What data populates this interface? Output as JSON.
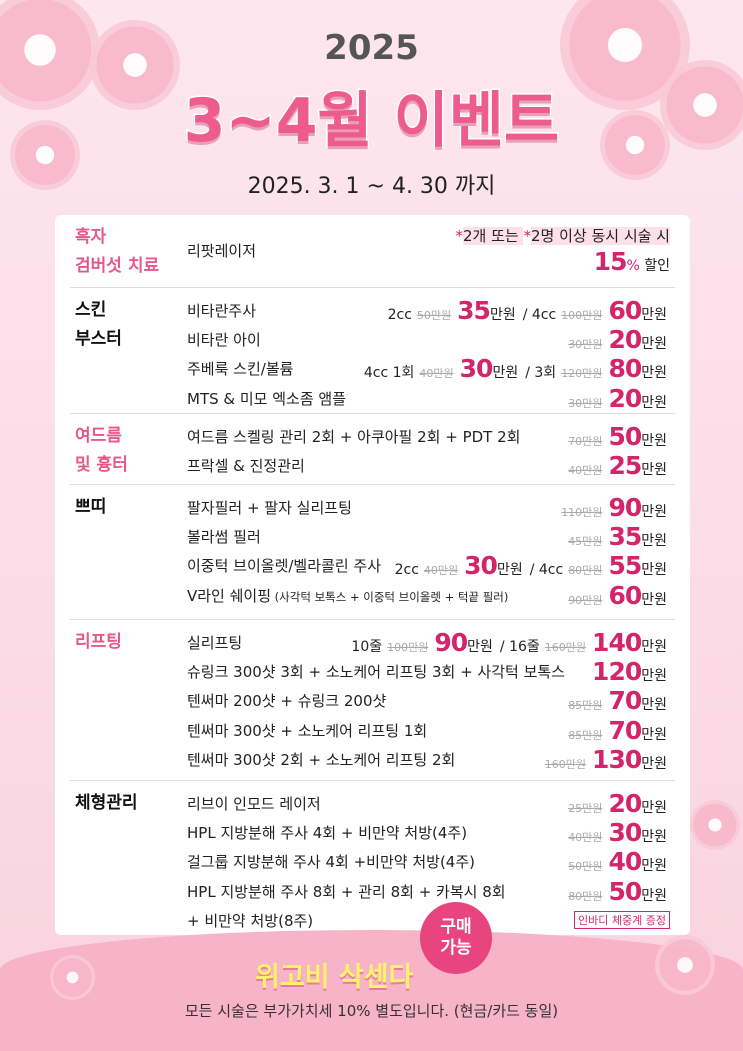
{
  "header": {
    "year": "2025",
    "title": "3~4월 이벤트",
    "period": "2025. 3. 1 ~ 4. 30 까지"
  },
  "colors": {
    "accent": "#d4256c",
    "category_pink": "#e8578a",
    "background": "#fbdbe6"
  },
  "notice": {
    "star1": "*",
    "part1": "2개 또는 ",
    "star2": "*",
    "part2": "2명 이상 동시 시술 시",
    "percent": "15",
    "percent_sign": "%",
    "discount": " 할인"
  },
  "sections": [
    {
      "category": "흑자\n검버섯 치료",
      "color": "pink",
      "rows": [
        {
          "item": "리팟레이저",
          "options": []
        }
      ]
    },
    {
      "category": "스킨\n부스터",
      "color": "black",
      "rows": [
        {
          "item": "비타란주사",
          "options": [
            {
              "prefix": "2cc",
              "orig": "50만원",
              "price": "35",
              "unit": "만원"
            },
            {
              "prefix": "/  4cc",
              "orig": "100만원",
              "price": "60",
              "unit": "만원"
            }
          ]
        },
        {
          "item": "비타란 아이",
          "options": [
            {
              "orig": "30만원",
              "price": "20",
              "unit": "만원"
            }
          ]
        },
        {
          "item": "주베룩 스킨/볼륨",
          "options": [
            {
              "prefix": "4cc 1회",
              "orig": "40만원",
              "price": "30",
              "unit": "만원"
            },
            {
              "prefix": "/ 3회",
              "orig": "120만원",
              "price": "80",
              "unit": "만원"
            }
          ]
        },
        {
          "item": "MTS & 미모 엑소좀 앰플",
          "options": [
            {
              "orig": "30만원",
              "price": "20",
              "unit": "만원"
            }
          ]
        }
      ]
    },
    {
      "category": "여드름\n및 흉터",
      "color": "pink",
      "rows": [
        {
          "item": "여드름 스켈링 관리 2회 + 아쿠아필  2회 + PDT 2회",
          "options": [
            {
              "orig": "70만원",
              "price": "50",
              "unit": "만원"
            }
          ]
        },
        {
          "item": "프락셀 & 진정관리",
          "options": [
            {
              "orig": "40만원",
              "price": "25",
              "unit": "만원"
            }
          ]
        }
      ]
    },
    {
      "category": "쁘띠",
      "color": "black",
      "rows": [
        {
          "item": "팔자필러 + 팔자 실리프팅",
          "options": [
            {
              "orig": "110만원",
              "price": "90",
              "unit": "만원"
            }
          ]
        },
        {
          "item": "볼라썸 필러",
          "options": [
            {
              "orig": "45만원",
              "price": "35",
              "unit": "만원"
            }
          ]
        },
        {
          "item": "이중턱 브이올렛/벨라콜린 주사",
          "options": [
            {
              "prefix": "2cc",
              "orig": "40만원",
              "price": "30",
              "unit": "만원"
            },
            {
              "prefix": "/  4cc",
              "orig": "80만원",
              "price": "55",
              "unit": "만원"
            }
          ]
        },
        {
          "item": "V라인 쉐이핑",
          "item_note": " (사각턱 보톡스 + 이중턱 브이올렛 + 턱끝 필러)",
          "options": [
            {
              "orig": "90만원",
              "price": "60",
              "unit": "만원"
            }
          ]
        }
      ]
    },
    {
      "category": "리프팅",
      "color": "pink",
      "rows": [
        {
          "item": "실리프팅",
          "options": [
            {
              "prefix": "10줄",
              "orig": "100만원",
              "price": "90",
              "unit": "만원"
            },
            {
              "prefix": "/ 16줄",
              "orig": "160만원",
              "price": "140",
              "unit": "만원"
            }
          ]
        },
        {
          "item": "슈링크 300샷 3회 + 소노케어 리프팅 3회 + 사각턱 보톡스",
          "options": [
            {
              "price": "120",
              "unit": "만원"
            }
          ]
        },
        {
          "item": "텐써마 200샷 + 슈링크 200샷",
          "options": [
            {
              "orig": "85만원",
              "price": "70",
              "unit": "만원"
            }
          ]
        },
        {
          "item": "텐써마 300샷 + 소노케어 리프팅 1회",
          "options": [
            {
              "orig": "85만원",
              "price": "70",
              "unit": "만원"
            }
          ]
        },
        {
          "item": "텐써마 300샷 2회 + 소노케어 리프팅 2회",
          "options": [
            {
              "orig": "160만원",
              "price": "130",
              "unit": "만원"
            }
          ]
        }
      ]
    },
    {
      "category": "체형관리",
      "color": "black",
      "rows": [
        {
          "item": "리브이 인모드 레이저",
          "options": [
            {
              "orig": "25만원",
              "price": "20",
              "unit": "만원"
            }
          ]
        },
        {
          "item": "HPL 지방분해 주사 4회 + 비만약 처방(4주)",
          "options": [
            {
              "orig": "40만원",
              "price": "30",
              "unit": "만원"
            }
          ]
        },
        {
          "item": "걸그룹 지방분해 주사 4회 +비만약 처방(4주)",
          "options": [
            {
              "orig": "50만원",
              "price": "40",
              "unit": "만원"
            }
          ]
        },
        {
          "item": "HPL 지방분해 주사 8회 + 관리 8회 + 카복시 8회",
          "options": [
            {
              "orig": "80만원",
              "price": "50",
              "unit": "만원"
            }
          ]
        },
        {
          "item": "+ 비만약 처방(8주)",
          "tag": "인바디 체중계 증정",
          "options": []
        }
      ]
    }
  ],
  "promo": {
    "text": "위고비 삭센다",
    "badge_line1": "구매",
    "badge_line2": "가능"
  },
  "footer": "모든 시술은 부가가치세 10% 별도입니다. (현금/카드 동일)"
}
